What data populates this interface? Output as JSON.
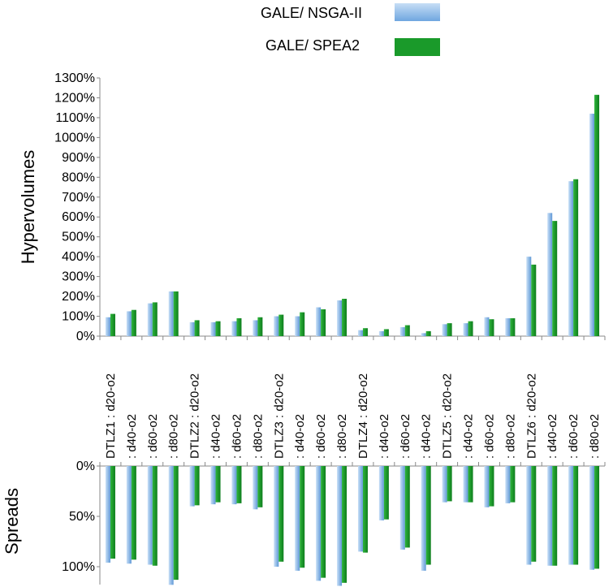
{
  "legend": [
    {
      "label": "GALE/ NSGA-II",
      "color": "#8ab8ea"
    },
    {
      "label": "GALE/ SPEA2",
      "color": "#1a9a2a"
    }
  ],
  "chart_data": [
    {
      "type": "bar",
      "ylabel": "Hypervolumes",
      "ylim": [
        0,
        1300
      ],
      "yticks": [
        0,
        100,
        200,
        300,
        400,
        500,
        600,
        700,
        800,
        900,
        1000,
        1100,
        1200,
        1300
      ],
      "ytick_labels": [
        "0%",
        "100%",
        "200%",
        "300%",
        "400%",
        "500%",
        "600%",
        "700%",
        "800%",
        "900%",
        "1000%",
        "1100%",
        "1200%",
        "1300%"
      ],
      "categories": [
        "DTLZ1 : d20-o2",
        ": d40-o2",
        ": d60-o2",
        ": d80-o2",
        "DTLZ2 : d20-o2",
        ": d40-o2",
        ": d60-o2",
        ": d80-o2",
        "DTLZ3 : d20-o2",
        ": d40-o2",
        ": d60-o2",
        ": d80-o2",
        "DTLZ4 : d20-o2",
        ": d40-o2",
        ": d60-o2",
        ": d40-o2",
        "DTLZ5 : d20-o2",
        ": d40-o2",
        ": d60-o2",
        ": d80-o2",
        "DTLZ6 : d20-o2",
        ": d40-o2",
        ": d60-o2",
        ": d80-o2"
      ],
      "series": [
        {
          "name": "GALE/ NSGA-II",
          "values": [
            95,
            125,
            165,
            225,
            70,
            70,
            75,
            80,
            100,
            100,
            145,
            180,
            30,
            25,
            45,
            15,
            60,
            65,
            95,
            90,
            400,
            620,
            780,
            1120
          ]
        },
        {
          "name": "GALE/ SPEA2",
          "values": [
            112,
            132,
            170,
            225,
            80,
            75,
            90,
            95,
            108,
            120,
            135,
            188,
            40,
            35,
            55,
            25,
            65,
            75,
            85,
            90,
            360,
            580,
            790,
            1215
          ]
        }
      ]
    },
    {
      "type": "bar",
      "ylabel": "Spreads",
      "ylim": [
        0,
        100
      ],
      "inverted": true,
      "yticks": [
        0,
        50,
        100
      ],
      "ytick_labels": [
        "0%",
        "50%",
        "100%"
      ],
      "series": [
        {
          "name": "GALE/ NSGA-II",
          "values": [
            96,
            97,
            98,
            118,
            40,
            38,
            38,
            43,
            100,
            104,
            114,
            119,
            85,
            54,
            83,
            104,
            36,
            36,
            41,
            37,
            98,
            99,
            98,
            103
          ]
        },
        {
          "name": "GALE/ SPEA2",
          "values": [
            92,
            93,
            99,
            113,
            39,
            36,
            37,
            41,
            95,
            101,
            111,
            116,
            86,
            53,
            81,
            98,
            35,
            36,
            40,
            36,
            95,
            99,
            98,
            102
          ]
        }
      ]
    }
  ]
}
